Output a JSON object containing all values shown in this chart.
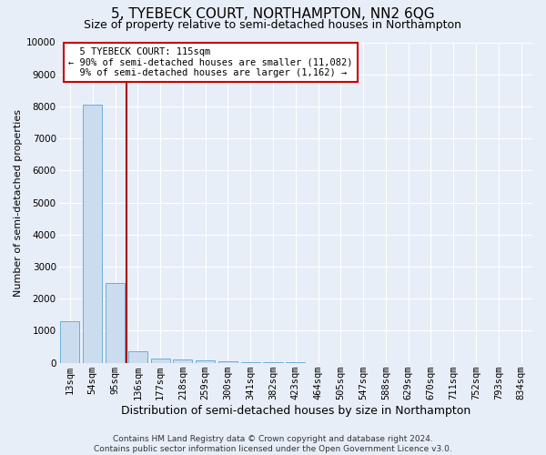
{
  "title": "5, TYEBECK COURT, NORTHAMPTON, NN2 6QG",
  "subtitle": "Size of property relative to semi-detached houses in Northampton",
  "xlabel": "Distribution of semi-detached houses by size in Northampton",
  "ylabel": "Number of semi-detached properties",
  "footer_line1": "Contains HM Land Registry data © Crown copyright and database right 2024.",
  "footer_line2": "Contains public sector information licensed under the Open Government Licence v3.0.",
  "bar_labels": [
    "13sqm",
    "54sqm",
    "95sqm",
    "136sqm",
    "177sqm",
    "218sqm",
    "259sqm",
    "300sqm",
    "341sqm",
    "382sqm",
    "423sqm",
    "464sqm",
    "505sqm",
    "547sqm",
    "588sqm",
    "629sqm",
    "670sqm",
    "711sqm",
    "752sqm",
    "793sqm",
    "834sqm"
  ],
  "bar_values": [
    1300,
    8050,
    2500,
    370,
    140,
    110,
    70,
    50,
    20,
    10,
    5,
    3,
    2,
    1,
    1,
    0,
    0,
    0,
    0,
    0,
    0
  ],
  "bar_color": "#ccdcef",
  "bar_edgecolor": "#6aaed6",
  "property_label": "5 TYEBECK COURT: 115sqm",
  "pct_smaller": 90,
  "count_smaller": 11082,
  "pct_larger": 9,
  "count_larger": 1162,
  "vline_color": "#aa0000",
  "annotation_box_edgecolor": "#cc0000",
  "ylim": [
    0,
    10000
  ],
  "yticks": [
    0,
    1000,
    2000,
    3000,
    4000,
    5000,
    6000,
    7000,
    8000,
    9000,
    10000
  ],
  "background_color": "#e8eef8",
  "plot_background": "#e8eef8",
  "grid_color": "#ffffff",
  "title_fontsize": 11,
  "subtitle_fontsize": 9,
  "ylabel_fontsize": 8,
  "xlabel_fontsize": 9,
  "tick_fontsize": 7.5,
  "ann_fontsize": 7.5,
  "footer_fontsize": 6.5
}
